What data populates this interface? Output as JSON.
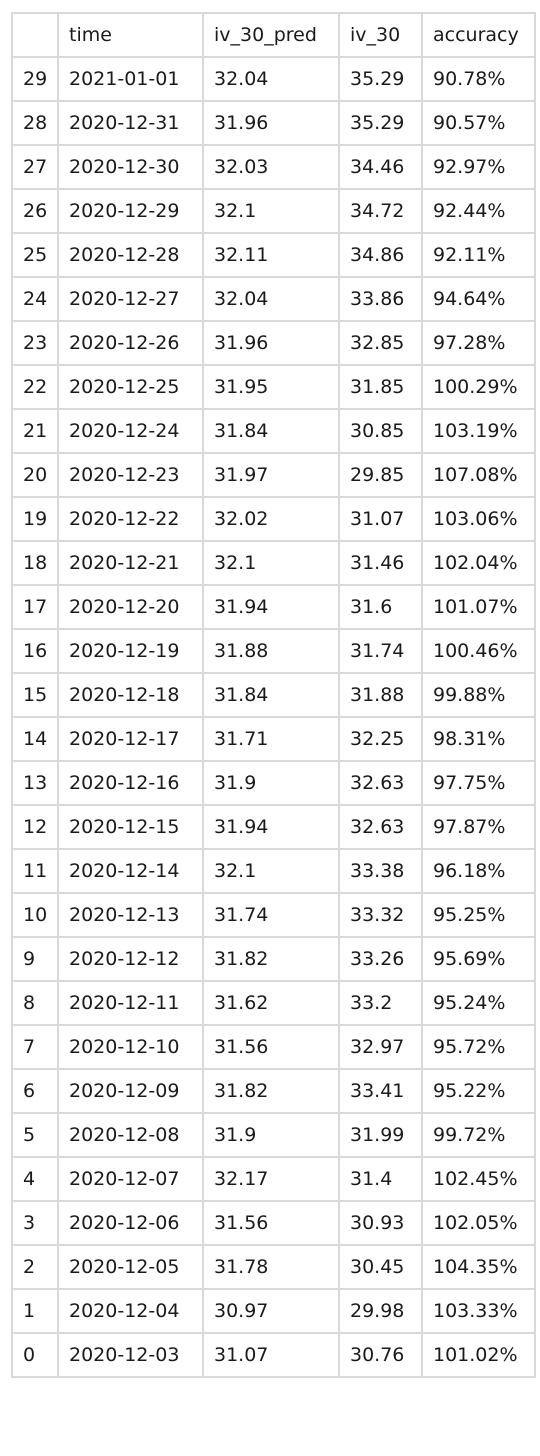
{
  "columns": [
    "",
    "time",
    "iv_30_pred",
    "iv_30",
    "accuracy"
  ],
  "rows": [
    [
      "29",
      "2021-01-01",
      "32.04",
      "35.29",
      "90.78%"
    ],
    [
      "28",
      "2020-12-31",
      "31.96",
      "35.29",
      "90.57%"
    ],
    [
      "27",
      "2020-12-30",
      "32.03",
      "34.46",
      "92.97%"
    ],
    [
      "26",
      "2020-12-29",
      "32.1",
      "34.72",
      "92.44%"
    ],
    [
      "25",
      "2020-12-28",
      "32.11",
      "34.86",
      "92.11%"
    ],
    [
      "24",
      "2020-12-27",
      "32.04",
      "33.86",
      "94.64%"
    ],
    [
      "23",
      "2020-12-26",
      "31.96",
      "32.85",
      "97.28%"
    ],
    [
      "22",
      "2020-12-25",
      "31.95",
      "31.85",
      "100.29%"
    ],
    [
      "21",
      "2020-12-24",
      "31.84",
      "30.85",
      "103.19%"
    ],
    [
      "20",
      "2020-12-23",
      "31.97",
      "29.85",
      "107.08%"
    ],
    [
      "19",
      "2020-12-22",
      "32.02",
      "31.07",
      "103.06%"
    ],
    [
      "18",
      "2020-12-21",
      "32.1",
      "31.46",
      "102.04%"
    ],
    [
      "17",
      "2020-12-20",
      "31.94",
      "31.6",
      "101.07%"
    ],
    [
      "16",
      "2020-12-19",
      "31.88",
      "31.74",
      "100.46%"
    ],
    [
      "15",
      "2020-12-18",
      "31.84",
      "31.88",
      "99.88%"
    ],
    [
      "14",
      "2020-12-17",
      "31.71",
      "32.25",
      "98.31%"
    ],
    [
      "13",
      "2020-12-16",
      "31.9",
      "32.63",
      "97.75%"
    ],
    [
      "12",
      "2020-12-15",
      "31.94",
      "32.63",
      "97.87%"
    ],
    [
      "11",
      "2020-12-14",
      "32.1",
      "33.38",
      "96.18%"
    ],
    [
      "10",
      "2020-12-13",
      "31.74",
      "33.32",
      "95.25%"
    ],
    [
      "9",
      "2020-12-12",
      "31.82",
      "33.26",
      "95.69%"
    ],
    [
      "8",
      "2020-12-11",
      "31.62",
      "33.2",
      "95.24%"
    ],
    [
      "7",
      "2020-12-10",
      "31.56",
      "32.97",
      "95.72%"
    ],
    [
      "6",
      "2020-12-09",
      "31.82",
      "33.41",
      "95.22%"
    ],
    [
      "5",
      "2020-12-08",
      "31.9",
      "31.99",
      "99.72%"
    ],
    [
      "4",
      "2020-12-07",
      "32.17",
      "31.4",
      "102.45%"
    ],
    [
      "3",
      "2020-12-06",
      "31.56",
      "30.93",
      "102.05%"
    ],
    [
      "2",
      "2020-12-05",
      "31.78",
      "30.45",
      "104.35%"
    ],
    [
      "1",
      "2020-12-04",
      "30.97",
      "29.98",
      "103.33%"
    ],
    [
      "0",
      "2020-12-03",
      "31.07",
      "30.76",
      "101.02%"
    ]
  ]
}
